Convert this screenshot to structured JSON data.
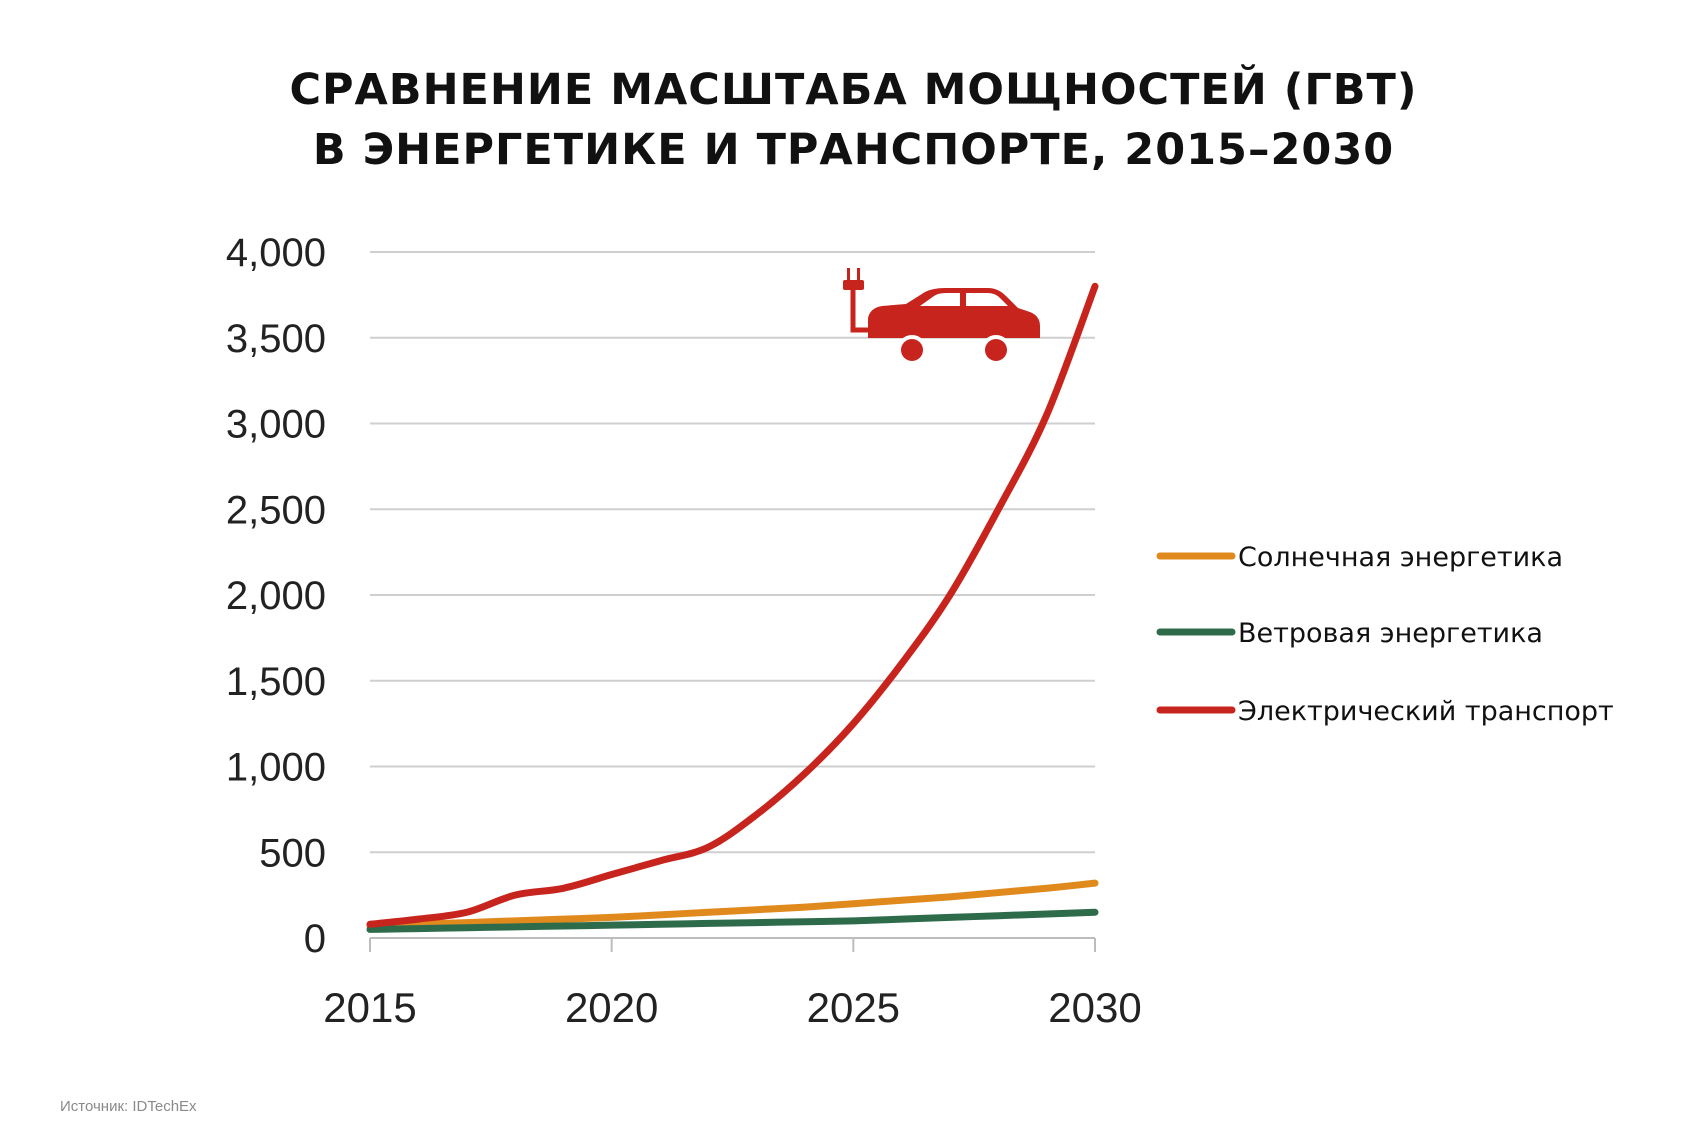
{
  "title": {
    "line1": "СРАВНЕНИЕ МАСШТАБА МОЩНОСТЕЙ (ГВТ)",
    "line2": "В ЭНЕРГЕТИКЕ И ТРАНСПОРТЕ, 2015–2030"
  },
  "source": "Источник: IDTechEx",
  "car_icon": "electric-car-plug-icon",
  "colors": {
    "solar": "#E08A1E",
    "wind": "#2E6B4A",
    "ev": "#C8241E",
    "grid": "#cfcfcf",
    "icon": "#C8241E"
  },
  "chart_data": {
    "type": "line",
    "title": "СРАВНЕНИЕ МАСШТАБА МОЩНОСТЕЙ (ГВТ) В ЭНЕРГЕТИКЕ И ТРАНСПОРТЕ, 2015–2030",
    "xlabel": "",
    "ylabel": "",
    "xlim": [
      2015,
      2030
    ],
    "ylim": [
      0,
      4000
    ],
    "x_ticks": [
      "2015",
      "2020",
      "2025",
      "2030"
    ],
    "y_ticks": [
      "0",
      "500",
      "1,000",
      "1,500",
      "2,000",
      "2,500",
      "3,000",
      "3,500",
      "4,000"
    ],
    "grid": true,
    "legend_position": "right",
    "x": [
      2015,
      2016,
      2017,
      2018,
      2019,
      2020,
      2021,
      2022,
      2023,
      2024,
      2025,
      2026,
      2027,
      2028,
      2029,
      2030
    ],
    "series": [
      {
        "name": "Солнечная энергетика",
        "values": [
          70,
          80,
          90,
          100,
          110,
          120,
          135,
          150,
          165,
          180,
          200,
          220,
          240,
          265,
          290,
          320
        ]
      },
      {
        "name": "Ветровая энергетика",
        "values": [
          50,
          55,
          60,
          65,
          70,
          75,
          80,
          85,
          90,
          95,
          100,
          110,
          120,
          130,
          140,
          150
        ]
      },
      {
        "name": "Электрический транспорт",
        "values": [
          80,
          110,
          150,
          250,
          290,
          370,
          450,
          530,
          720,
          960,
          1250,
          1600,
          2000,
          2500,
          3050,
          3800
        ]
      }
    ]
  }
}
